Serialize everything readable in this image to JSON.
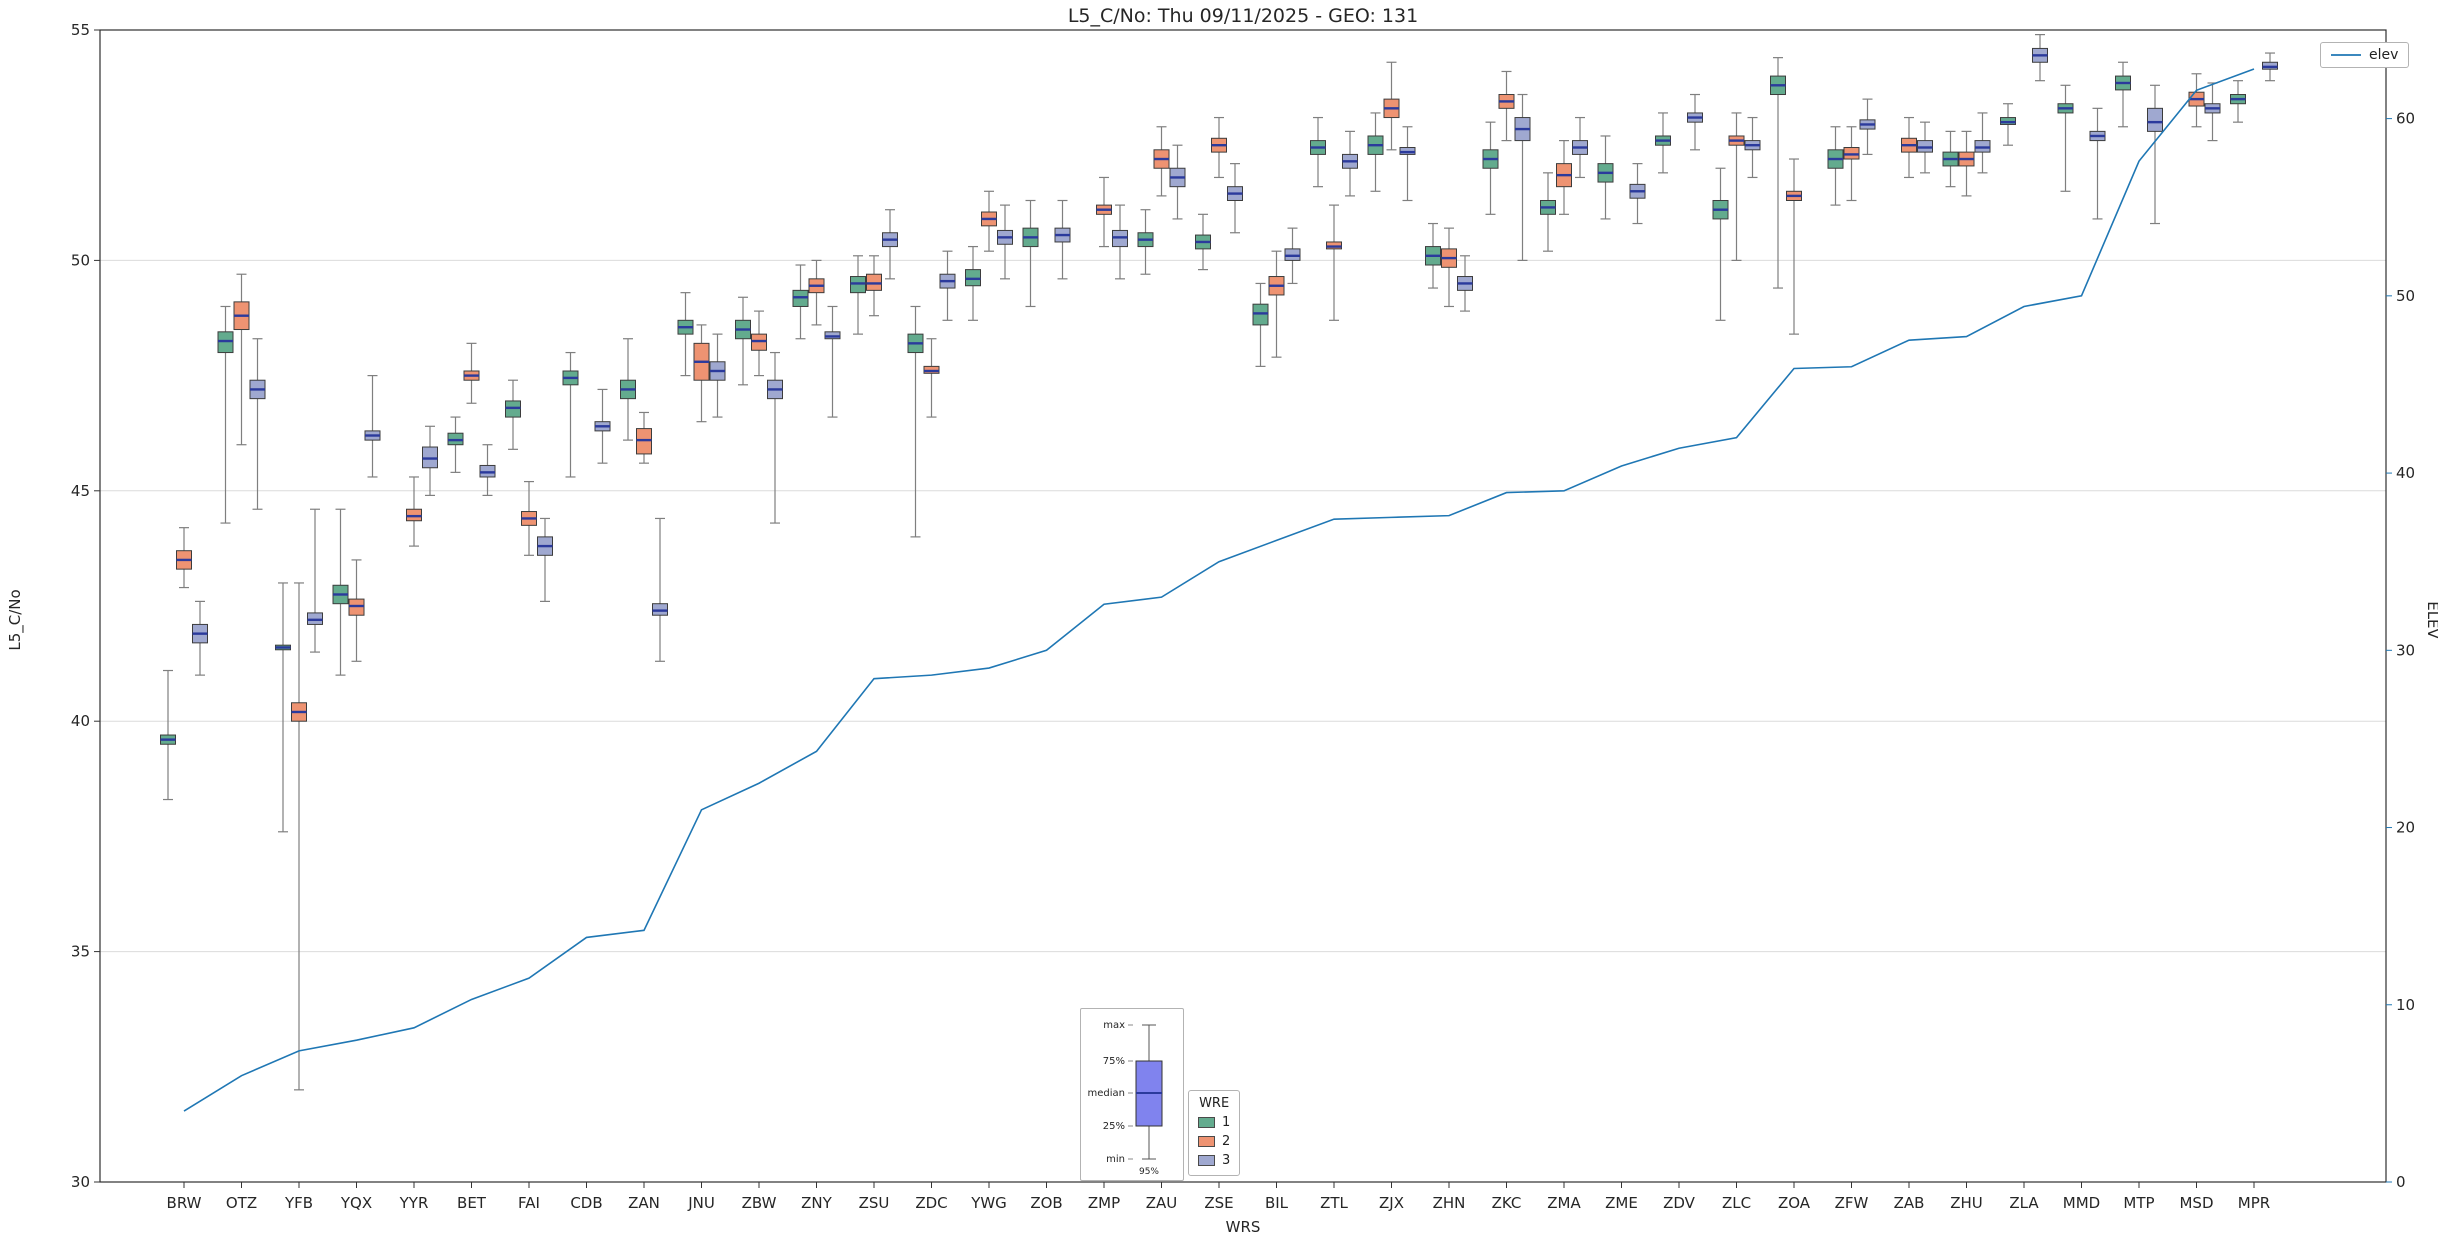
{
  "chart_data": {
    "type": "boxplot+line",
    "title": "L5_C/No: Thu 09/11/2025 - GEO: 131",
    "xlabel": "WRS",
    "ylabel_left": "L5_C/No",
    "ylabel_right": "ELEV",
    "ylim_left": [
      30,
      55
    ],
    "ylim_right": [
      0,
      65
    ],
    "yticks_left": [
      30,
      35,
      40,
      45,
      50,
      55
    ],
    "yticks_right": [
      0,
      10,
      20,
      30,
      40,
      50,
      60
    ],
    "grid": "horizontal",
    "elev_label": "elev",
    "colors": {
      "elev": "#1f77b4",
      "right_axis": "#1f77b4",
      "median": "#2b3a9c",
      "whisker": "#7f7f7f",
      "grid": "#dcdcdc",
      "frame": "#2e2e2e",
      "legend_box": "#8083ee"
    },
    "legend": {
      "title": "WRE",
      "entries": [
        {
          "label": "1",
          "color": "#63ab8e"
        },
        {
          "label": "2",
          "color": "#ee9372"
        },
        {
          "label": "3",
          "color": "#9fa8d0"
        }
      ]
    },
    "box_legend": {
      "labels": [
        "max",
        "75%",
        "median",
        "25%",
        "min"
      ],
      "bottom": "95%"
    },
    "stations": [
      {
        "name": "BRW",
        "elev": 4.0,
        "s1": [
          38.3,
          39.5,
          39.6,
          39.7,
          41.1
        ],
        "s2": [
          42.9,
          43.3,
          43.5,
          43.7,
          44.2
        ],
        "s3": [
          41.0,
          41.7,
          41.9,
          42.1,
          42.6
        ]
      },
      {
        "name": "OTZ",
        "elev": 6.0,
        "s1": [
          44.3,
          48.0,
          48.25,
          48.45,
          49.0
        ],
        "s2": [
          46.0,
          48.5,
          48.8,
          49.1,
          49.7
        ],
        "s3": [
          44.6,
          47.0,
          47.2,
          47.4,
          48.3
        ]
      },
      {
        "name": "YFB",
        "elev": 7.4,
        "s1": [
          37.6,
          41.55,
          41.6,
          41.65,
          43.0
        ],
        "s2": [
          32.0,
          40.0,
          40.2,
          40.4,
          43.0
        ],
        "s3": [
          41.5,
          42.1,
          42.2,
          42.35,
          44.6
        ]
      },
      {
        "name": "YQX",
        "elev": 8.0,
        "s1": [
          41.0,
          42.55,
          42.75,
          42.95,
          44.6
        ],
        "s2": [
          41.3,
          42.3,
          42.5,
          42.65,
          43.5
        ],
        "s3": [
          45.3,
          46.1,
          46.2,
          46.3,
          47.5
        ]
      },
      {
        "name": "YYR",
        "elev": 8.7,
        "s1": null,
        "s2": [
          43.8,
          44.35,
          44.45,
          44.6,
          45.3
        ],
        "s3": [
          44.9,
          45.5,
          45.7,
          45.95,
          46.4
        ]
      },
      {
        "name": "BET",
        "elev": 10.3,
        "s1": [
          45.4,
          46.0,
          46.1,
          46.25,
          46.6
        ],
        "s2": [
          46.9,
          47.4,
          47.5,
          47.6,
          48.2
        ],
        "s3": [
          44.9,
          45.3,
          45.4,
          45.55,
          46.0
        ]
      },
      {
        "name": "FAI",
        "elev": 11.5,
        "s1": [
          45.9,
          46.6,
          46.8,
          46.95,
          47.4
        ],
        "s2": [
          43.6,
          44.25,
          44.4,
          44.55,
          45.2
        ],
        "s3": [
          42.6,
          43.6,
          43.8,
          44.0,
          44.4
        ]
      },
      {
        "name": "CDB",
        "elev": 13.8,
        "s1": [
          45.3,
          47.3,
          47.45,
          47.6,
          48.0
        ],
        "s2": null,
        "s3": [
          45.6,
          46.3,
          46.4,
          46.5,
          47.2
        ]
      },
      {
        "name": "ZAN",
        "elev": 14.2,
        "s1": [
          46.1,
          47.0,
          47.2,
          47.4,
          48.3
        ],
        "s2": [
          45.6,
          45.8,
          46.1,
          46.35,
          46.7
        ],
        "s3": [
          41.3,
          42.3,
          42.4,
          42.55,
          44.4
        ]
      },
      {
        "name": "JNU",
        "elev": 21.0,
        "s1": [
          47.5,
          48.4,
          48.55,
          48.7,
          49.3
        ],
        "s2": [
          46.5,
          47.4,
          47.8,
          48.2,
          48.6
        ],
        "s3": [
          46.6,
          47.4,
          47.6,
          47.8,
          48.4
        ]
      },
      {
        "name": "ZBW",
        "elev": 22.5,
        "s1": [
          47.3,
          48.3,
          48.5,
          48.7,
          49.2
        ],
        "s2": [
          47.5,
          48.05,
          48.25,
          48.4,
          48.9
        ],
        "s3": [
          44.3,
          47.0,
          47.2,
          47.4,
          48.0
        ]
      },
      {
        "name": "ZNY",
        "elev": 24.3,
        "s1": [
          48.3,
          49.0,
          49.2,
          49.35,
          49.9
        ],
        "s2": [
          48.6,
          49.3,
          49.45,
          49.6,
          50.0
        ],
        "s3": [
          46.6,
          48.3,
          48.35,
          48.45,
          49.0
        ]
      },
      {
        "name": "ZSU",
        "elev": 28.4,
        "s1": [
          48.4,
          49.3,
          49.5,
          49.65,
          50.1
        ],
        "s2": [
          48.8,
          49.35,
          49.5,
          49.7,
          50.1
        ],
        "s3": [
          49.6,
          50.3,
          50.45,
          50.6,
          51.1
        ]
      },
      {
        "name": "ZDC",
        "elev": 28.6,
        "s1": [
          44.0,
          48.0,
          48.2,
          48.4,
          49.0
        ],
        "s2": [
          46.6,
          47.55,
          47.6,
          47.7,
          48.3
        ],
        "s3": [
          48.7,
          49.4,
          49.55,
          49.7,
          50.2
        ]
      },
      {
        "name": "YWG",
        "elev": 29.0,
        "s1": [
          48.7,
          49.45,
          49.6,
          49.8,
          50.3
        ],
        "s2": [
          50.2,
          50.75,
          50.9,
          51.05,
          51.5
        ],
        "s3": [
          49.6,
          50.35,
          50.5,
          50.65,
          51.2
        ]
      },
      {
        "name": "ZOB",
        "elev": 30.0,
        "s1": [
          49.0,
          50.3,
          50.5,
          50.7,
          51.3
        ],
        "s2": null,
        "s3": [
          49.6,
          50.4,
          50.55,
          50.7,
          51.3
        ]
      },
      {
        "name": "ZMP",
        "elev": 32.6,
        "s1": null,
        "s2": [
          50.3,
          51.0,
          51.1,
          51.2,
          51.8
        ],
        "s3": [
          49.6,
          50.3,
          50.5,
          50.65,
          51.2
        ]
      },
      {
        "name": "ZAU",
        "elev": 33.0,
        "s1": [
          49.7,
          50.3,
          50.45,
          50.6,
          51.1
        ],
        "s2": [
          51.4,
          52.0,
          52.2,
          52.4,
          52.9
        ],
        "s3": [
          50.9,
          51.6,
          51.8,
          52.0,
          52.5
        ]
      },
      {
        "name": "ZSE",
        "elev": 35.0,
        "s1": [
          49.8,
          50.25,
          50.4,
          50.55,
          51.0
        ],
        "s2": [
          51.8,
          52.35,
          52.5,
          52.65,
          53.1
        ],
        "s3": [
          50.6,
          51.3,
          51.45,
          51.6,
          52.1
        ]
      },
      {
        "name": "BIL",
        "elev": 36.2,
        "s1": [
          47.7,
          48.6,
          48.85,
          49.05,
          49.5
        ],
        "s2": [
          47.9,
          49.25,
          49.45,
          49.65,
          50.2
        ],
        "s3": [
          49.5,
          50.0,
          50.1,
          50.25,
          50.7
        ]
      },
      {
        "name": "ZTL",
        "elev": 37.4,
        "s1": [
          51.6,
          52.3,
          52.45,
          52.6,
          53.1
        ],
        "s2": [
          48.7,
          50.25,
          50.3,
          50.4,
          51.2
        ],
        "s3": [
          51.4,
          52.0,
          52.15,
          52.3,
          52.8
        ]
      },
      {
        "name": "ZJX",
        "elev": 37.5,
        "s1": [
          51.5,
          52.3,
          52.5,
          52.7,
          53.2
        ],
        "s2": [
          52.4,
          53.1,
          53.3,
          53.5,
          54.3
        ],
        "s3": [
          51.3,
          52.3,
          52.35,
          52.45,
          52.9
        ]
      },
      {
        "name": "ZHN",
        "elev": 37.6,
        "s1": [
          49.4,
          49.9,
          50.1,
          50.3,
          50.8
        ],
        "s2": [
          49.0,
          49.85,
          50.05,
          50.25,
          50.7
        ],
        "s3": [
          48.9,
          49.35,
          49.5,
          49.65,
          50.1
        ]
      },
      {
        "name": "ZKC",
        "elev": 38.9,
        "s1": [
          51.0,
          52.0,
          52.2,
          52.4,
          53.0
        ],
        "s2": [
          52.6,
          53.3,
          53.45,
          53.6,
          54.1
        ],
        "s3": [
          50.0,
          52.6,
          52.85,
          53.1,
          53.6
        ]
      },
      {
        "name": "ZMA",
        "elev": 39.0,
        "s1": [
          50.2,
          51.0,
          51.15,
          51.3,
          51.9
        ],
        "s2": [
          51.0,
          51.6,
          51.85,
          52.1,
          52.6
        ],
        "s3": [
          51.8,
          52.3,
          52.45,
          52.6,
          53.1
        ]
      },
      {
        "name": "ZME",
        "elev": 40.4,
        "s1": [
          50.9,
          51.7,
          51.9,
          52.1,
          52.7
        ],
        "s2": null,
        "s3": [
          50.8,
          51.35,
          51.5,
          51.65,
          52.1
        ]
      },
      {
        "name": "ZDV",
        "elev": 41.4,
        "s1": [
          51.9,
          52.5,
          52.6,
          52.7,
          53.2
        ],
        "s2": null,
        "s3": [
          52.4,
          53.0,
          53.1,
          53.2,
          53.6
        ]
      },
      {
        "name": "ZLC",
        "elev": 42.0,
        "s1": [
          48.7,
          50.9,
          51.1,
          51.3,
          52.0
        ],
        "s2": [
          50.0,
          52.5,
          52.6,
          52.7,
          53.2
        ],
        "s3": [
          51.8,
          52.4,
          52.5,
          52.6,
          53.1
        ]
      },
      {
        "name": "ZOA",
        "elev": 45.9,
        "s1": [
          49.4,
          53.6,
          53.8,
          54.0,
          54.4
        ],
        "s2": [
          48.4,
          51.3,
          51.4,
          51.5,
          52.2
        ],
        "s3": null
      },
      {
        "name": "ZFW",
        "elev": 46.0,
        "s1": [
          51.2,
          52.0,
          52.2,
          52.4,
          52.9
        ],
        "s2": [
          51.3,
          52.2,
          52.3,
          52.45,
          52.9
        ],
        "s3": [
          52.3,
          52.85,
          52.95,
          53.05,
          53.5
        ]
      },
      {
        "name": "ZAB",
        "elev": 47.5,
        "s1": null,
        "s2": [
          51.8,
          52.35,
          52.5,
          52.65,
          53.1
        ],
        "s3": [
          51.9,
          52.35,
          52.45,
          52.6,
          53.0
        ]
      },
      {
        "name": "ZHU",
        "elev": 47.7,
        "s1": [
          51.6,
          52.05,
          52.2,
          52.35,
          52.8
        ],
        "s2": [
          51.4,
          52.05,
          52.2,
          52.35,
          52.8
        ],
        "s3": [
          51.9,
          52.35,
          52.45,
          52.6,
          53.2
        ]
      },
      {
        "name": "ZLA",
        "elev": 49.4,
        "s1": [
          52.5,
          52.95,
          53.0,
          53.1,
          53.4
        ],
        "s2": null,
        "s3": [
          53.9,
          54.3,
          54.45,
          54.6,
          54.9
        ]
      },
      {
        "name": "MMD",
        "elev": 50.0,
        "s1": [
          51.5,
          53.2,
          53.3,
          53.4,
          53.8
        ],
        "s2": null,
        "s3": [
          50.9,
          52.6,
          52.7,
          52.8,
          53.3
        ]
      },
      {
        "name": "MTP",
        "elev": 57.6,
        "s1": [
          52.9,
          53.7,
          53.85,
          54.0,
          54.3
        ],
        "s2": null,
        "s3": [
          50.8,
          52.8,
          53.0,
          53.3,
          53.8
        ]
      },
      {
        "name": "MSD",
        "elev": 61.6,
        "s1": null,
        "s2": [
          52.9,
          53.35,
          53.5,
          53.65,
          54.05
        ],
        "s3": [
          52.6,
          53.2,
          53.3,
          53.4,
          53.85
        ]
      },
      {
        "name": "MPR",
        "elev": 62.8,
        "s1": [
          53.0,
          53.4,
          53.5,
          53.6,
          53.9
        ],
        "s2": null,
        "s3": [
          53.9,
          54.15,
          54.2,
          54.3,
          54.5
        ]
      }
    ]
  }
}
